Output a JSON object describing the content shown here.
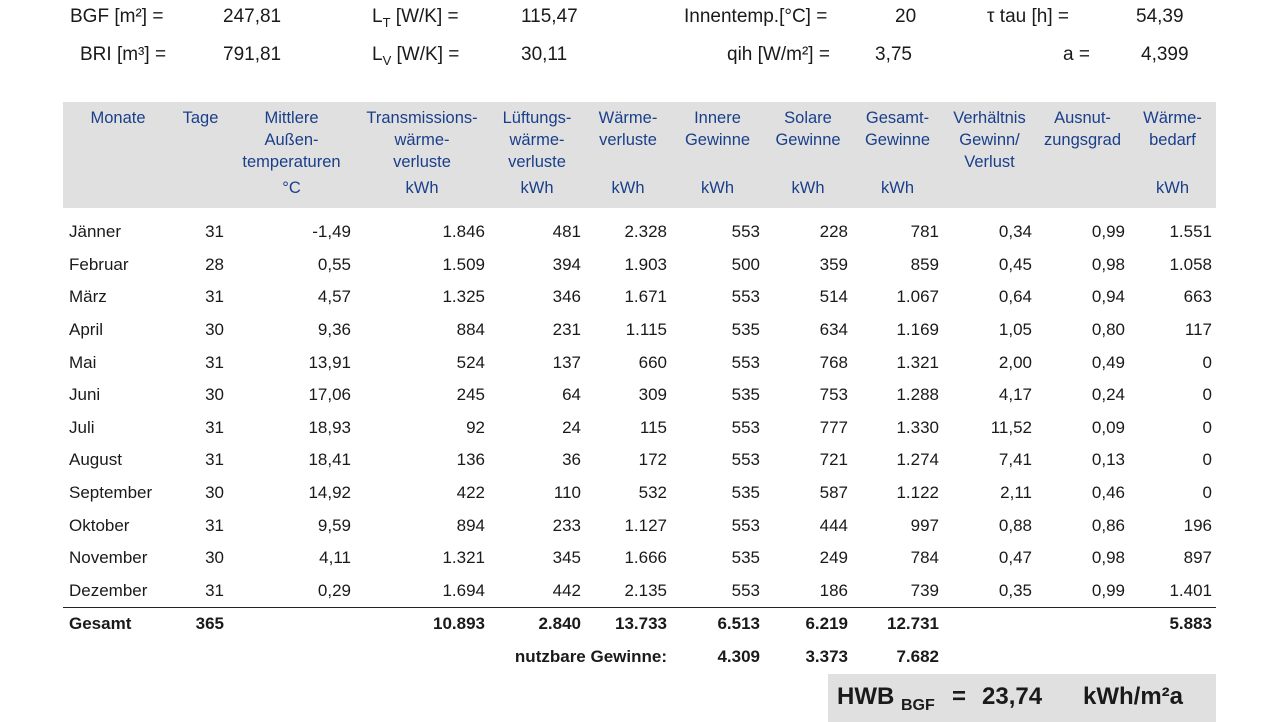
{
  "header": {
    "bgf_label": "BGF [m²] =",
    "bgf_value": "247,81",
    "bri_label": "BRI [m³] =",
    "bri_value": "791,81",
    "lt_label_main": "L",
    "lt_label_sub": "T",
    "lt_label_unit": " [W/K] =",
    "lt_value": "115,47",
    "lv_label_main": "L",
    "lv_label_sub": "V",
    "lv_label_unit": " [W/K] =",
    "lv_value": "30,11",
    "innentemp_label": "Innentemp.[°C] =",
    "innentemp_value": "20",
    "qih_label": "qih [W/m²]  =",
    "qih_value": "3,75",
    "tau_label": "τ tau [h] =",
    "tau_value": "54,39",
    "a_label": "a =",
    "a_value": "4,399"
  },
  "columns": [
    {
      "head": [
        "Monate"
      ],
      "unit": ""
    },
    {
      "head": [
        "Tage"
      ],
      "unit": ""
    },
    {
      "head": [
        "Mittlere",
        "Außen-",
        "temperaturen"
      ],
      "unit": "°C"
    },
    {
      "head": [
        "Transmissions-",
        "wärme-",
        "verluste"
      ],
      "unit": "kWh"
    },
    {
      "head": [
        "Lüftungs-",
        "wärme-",
        "verluste"
      ],
      "unit": "kWh"
    },
    {
      "head": [
        "Wärme-",
        "verluste"
      ],
      "unit": "kWh"
    },
    {
      "head": [
        "Innere",
        "Gewinne"
      ],
      "unit": "kWh"
    },
    {
      "head": [
        "Solare",
        "Gewinne"
      ],
      "unit": "kWh"
    },
    {
      "head": [
        "Gesamt-",
        "Gewinne"
      ],
      "unit": "kWh"
    },
    {
      "head": [
        "Verhältnis",
        "Gewinn/",
        "Verlust"
      ],
      "unit": ""
    },
    {
      "head": [
        "Ausnut-",
        "zungsgrad"
      ],
      "unit": ""
    },
    {
      "head": [
        "Wärme-",
        "bedarf"
      ],
      "unit": "kWh"
    }
  ],
  "rows": [
    [
      "Jänner",
      "31",
      "-1,49",
      "1.846",
      "481",
      "2.328",
      "553",
      "228",
      "781",
      "0,34",
      "0,99",
      "1.551"
    ],
    [
      "Februar",
      "28",
      "0,55",
      "1.509",
      "394",
      "1.903",
      "500",
      "359",
      "859",
      "0,45",
      "0,98",
      "1.058"
    ],
    [
      "März",
      "31",
      "4,57",
      "1.325",
      "346",
      "1.671",
      "553",
      "514",
      "1.067",
      "0,64",
      "0,94",
      "663"
    ],
    [
      "April",
      "30",
      "9,36",
      "884",
      "231",
      "1.115",
      "535",
      "634",
      "1.169",
      "1,05",
      "0,80",
      "117"
    ],
    [
      "Mai",
      "31",
      "13,91",
      "524",
      "137",
      "660",
      "553",
      "768",
      "1.321",
      "2,00",
      "0,49",
      "0"
    ],
    [
      "Juni",
      "30",
      "17,06",
      "245",
      "64",
      "309",
      "535",
      "753",
      "1.288",
      "4,17",
      "0,24",
      "0"
    ],
    [
      "Juli",
      "31",
      "18,93",
      "92",
      "24",
      "115",
      "553",
      "777",
      "1.330",
      "11,52",
      "0,09",
      "0"
    ],
    [
      "August",
      "31",
      "18,41",
      "136",
      "36",
      "172",
      "553",
      "721",
      "1.274",
      "7,41",
      "0,13",
      "0"
    ],
    [
      "September",
      "30",
      "14,92",
      "422",
      "110",
      "532",
      "535",
      "587",
      "1.122",
      "2,11",
      "0,46",
      "0"
    ],
    [
      "Oktober",
      "31",
      "9,59",
      "894",
      "233",
      "1.127",
      "553",
      "444",
      "997",
      "0,88",
      "0,86",
      "196"
    ],
    [
      "November",
      "30",
      "4,11",
      "1.321",
      "345",
      "1.666",
      "535",
      "249",
      "784",
      "0,47",
      "0,98",
      "897"
    ],
    [
      "Dezember",
      "31",
      "0,29",
      "1.694",
      "442",
      "2.135",
      "553",
      "186",
      "739",
      "0,35",
      "0,99",
      "1.401"
    ]
  ],
  "total": [
    "Gesamt",
    "365",
    "",
    "10.893",
    "2.840",
    "13.733",
    "6.513",
    "6.219",
    "12.731",
    "",
    "",
    "5.883"
  ],
  "nutzbare": {
    "label": "nutzbare Gewinne:",
    "innere": "4.309",
    "solare": "3.373",
    "gesamt": "7.682"
  },
  "hwb": {
    "label_main": "HWB",
    "label_sub": "BGF",
    "equals": "=",
    "value": "23,74",
    "unit": "kWh/m²a"
  }
}
